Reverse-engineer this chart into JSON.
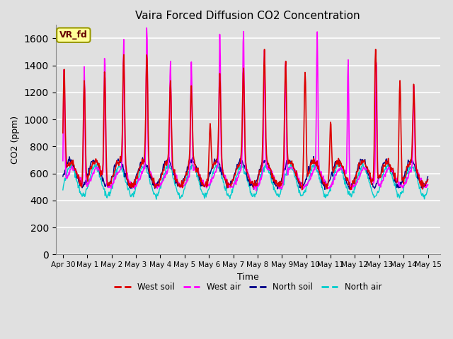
{
  "title": "Vaira Forced Diffusion CO2 Concentration",
  "xlabel": "Time",
  "ylabel": "CO2 (ppm)",
  "ylim": [
    0,
    1700
  ],
  "yticks": [
    0,
    200,
    400,
    600,
    800,
    1000,
    1200,
    1400,
    1600
  ],
  "xtick_labels": [
    "Apr 30",
    "May 1",
    "May 2",
    "May 3",
    "May 4",
    "May 5",
    "May 6",
    "May 7",
    "May 8",
    "May 9",
    "May 10",
    "May 11",
    "May 12",
    "May 13",
    "May 14",
    "May 15"
  ],
  "xtick_positions": [
    0,
    1,
    2,
    3,
    4,
    5,
    6,
    7,
    8,
    9,
    10,
    11,
    12,
    13,
    14,
    15
  ],
  "bg_color": "#e0e0e0",
  "grid_color": "white",
  "legend_label": "VR_fd",
  "legend_bg": "#ffff99",
  "legend_border": "#999900",
  "series": {
    "west_soil": {
      "color": "#dd0000",
      "label": "West soil"
    },
    "west_air": {
      "color": "#ff00ff",
      "label": "West air"
    },
    "north_soil": {
      "color": "#000088",
      "label": "North soil"
    },
    "north_air": {
      "color": "#00cccc",
      "label": "North air"
    }
  },
  "wa_spike_times": [
    0.05,
    0.88,
    1.72,
    2.5,
    3.45,
    4.42,
    5.28,
    6.45,
    7.42,
    8.28,
    9.15,
    10.45,
    11.72,
    12.88,
    14.42
  ],
  "wa_spike_heights": [
    900,
    870,
    950,
    970,
    1060,
    810,
    820,
    1010,
    1060,
    900,
    910,
    1010,
    900,
    960,
    610
  ],
  "ws_spike_times": [
    0.05,
    0.88,
    1.72,
    2.5,
    3.45,
    4.42,
    5.28,
    6.05,
    6.45,
    7.42,
    8.28,
    9.15,
    9.95,
    11.0,
    12.85,
    13.85,
    14.42
  ],
  "ws_spike_heights": [
    800,
    780,
    820,
    830,
    820,
    600,
    550,
    390,
    680,
    720,
    840,
    810,
    810,
    430,
    1050,
    790,
    570
  ]
}
